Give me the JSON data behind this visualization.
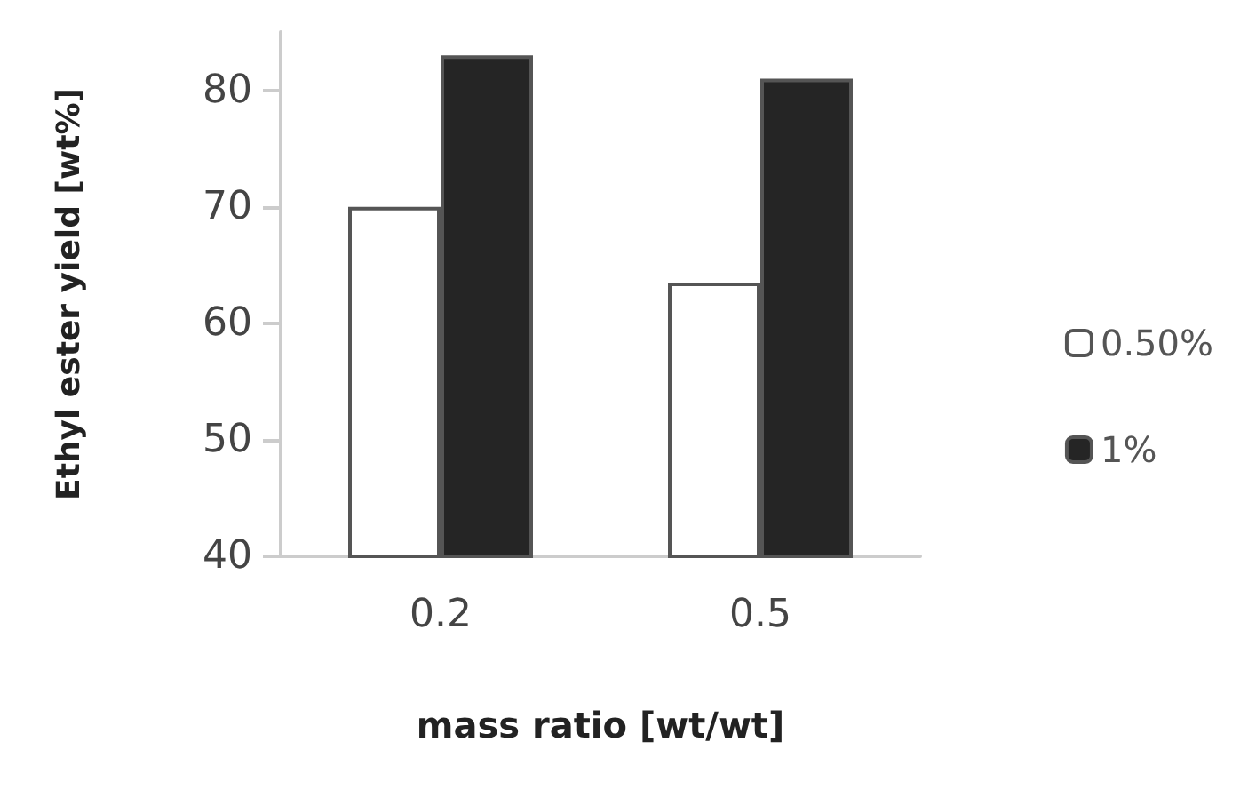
{
  "chart_data": {
    "type": "bar",
    "xlabel": "mass ratio [wt/wt]",
    "ylabel": "Ethyl ester yield [wt%]",
    "categories": [
      "0.2",
      "0.5"
    ],
    "series": [
      {
        "name": "0.50%",
        "color": "#ffffff",
        "values": [
          70,
          63.5
        ]
      },
      {
        "name": "1%",
        "color": "#252525",
        "values": [
          83,
          81
        ]
      }
    ],
    "ylim": [
      40,
      85
    ],
    "yticks": [
      40,
      50,
      60,
      70,
      80
    ],
    "grid": false,
    "legend": "right"
  }
}
